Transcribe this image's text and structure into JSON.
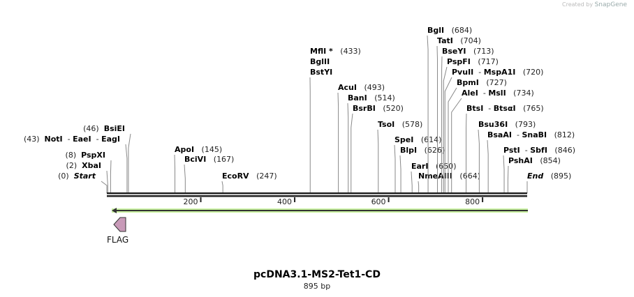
{
  "credit": {
    "prefix": "Created by",
    "brand": "SnapGene"
  },
  "title": "pcDNA3.1-MS2-Tet1-CD",
  "length_label": "895 bp",
  "sequence_length": 895,
  "ticks": [
    {
      "value": 200,
      "label": "200"
    },
    {
      "value": 400,
      "label": "400"
    },
    {
      "value": 600,
      "label": "600"
    },
    {
      "value": 800,
      "label": "800"
    }
  ],
  "feature": {
    "label": "FLAG",
    "direction": "reverse",
    "color": "#c89ab8"
  },
  "orf_color": "#a8e070",
  "sites": [
    {
      "names": [
        "Start"
      ],
      "position": 0,
      "number": "(0)",
      "italic": true
    },
    {
      "names": [
        "XbaI"
      ],
      "position": 2,
      "number": "(2)"
    },
    {
      "names": [
        "PspXI"
      ],
      "position": 8,
      "number": "(8)"
    },
    {
      "names": [
        "NotI",
        "EaeI",
        "EagI"
      ],
      "position": 43,
      "number": "(43)"
    },
    {
      "names": [
        "BsiEI"
      ],
      "position": 46,
      "number": "(46)"
    },
    {
      "names": [
        "ApoI"
      ],
      "position": 145,
      "number": "(145)"
    },
    {
      "names": [
        "BciVI"
      ],
      "position": 167,
      "number": "(167)"
    },
    {
      "names": [
        "EcoRV"
      ],
      "position": 247,
      "number": "(247)"
    },
    {
      "names": [
        "MflI *"
      ],
      "position": 433,
      "number": "(433)"
    },
    {
      "names": [
        "BglII"
      ],
      "position": 433,
      "number": ""
    },
    {
      "names": [
        "BstYI"
      ],
      "position": 433,
      "number": ""
    },
    {
      "names": [
        "AcuI"
      ],
      "position": 493,
      "number": "(493)"
    },
    {
      "names": [
        "BanI"
      ],
      "position": 514,
      "number": "(514)"
    },
    {
      "names": [
        "BsrBI"
      ],
      "position": 520,
      "number": "(520)"
    },
    {
      "names": [
        "TsoI"
      ],
      "position": 578,
      "number": "(578)"
    },
    {
      "names": [
        "SpeI"
      ],
      "position": 614,
      "number": "(614)"
    },
    {
      "names": [
        "BlpI"
      ],
      "position": 626,
      "number": "(626)"
    },
    {
      "names": [
        "EarI"
      ],
      "position": 650,
      "number": "(650)"
    },
    {
      "names": [
        "NmeAIII"
      ],
      "position": 664,
      "number": "(664)"
    },
    {
      "names": [
        "BglI"
      ],
      "position": 684,
      "number": "(684)"
    },
    {
      "names": [
        "TatI"
      ],
      "position": 704,
      "number": "(704)"
    },
    {
      "names": [
        "BseYI"
      ],
      "position": 713,
      "number": "(713)"
    },
    {
      "names": [
        "PspFI"
      ],
      "position": 717,
      "number": "(717)"
    },
    {
      "names": [
        "PvuII",
        "MspA1I"
      ],
      "position": 720,
      "number": "(720)"
    },
    {
      "names": [
        "BpmI"
      ],
      "position": 727,
      "number": "(727)"
    },
    {
      "names": [
        "AleI",
        "MslI"
      ],
      "position": 734,
      "number": "(734)"
    },
    {
      "names": [
        "BtsI",
        "BtsαI"
      ],
      "position": 765,
      "number": "(765)"
    },
    {
      "names": [
        "Bsu36I"
      ],
      "position": 793,
      "number": "(793)"
    },
    {
      "names": [
        "BsaAI",
        "SnaBI"
      ],
      "position": 812,
      "number": "(812)"
    },
    {
      "names": [
        "PstI",
        "SbfI"
      ],
      "position": 846,
      "number": "(846)"
    },
    {
      "names": [
        "PshAI"
      ],
      "position": 854,
      "number": "(854)"
    },
    {
      "names": [
        "End"
      ],
      "position": 895,
      "number": "(895)",
      "italic": true
    }
  ]
}
